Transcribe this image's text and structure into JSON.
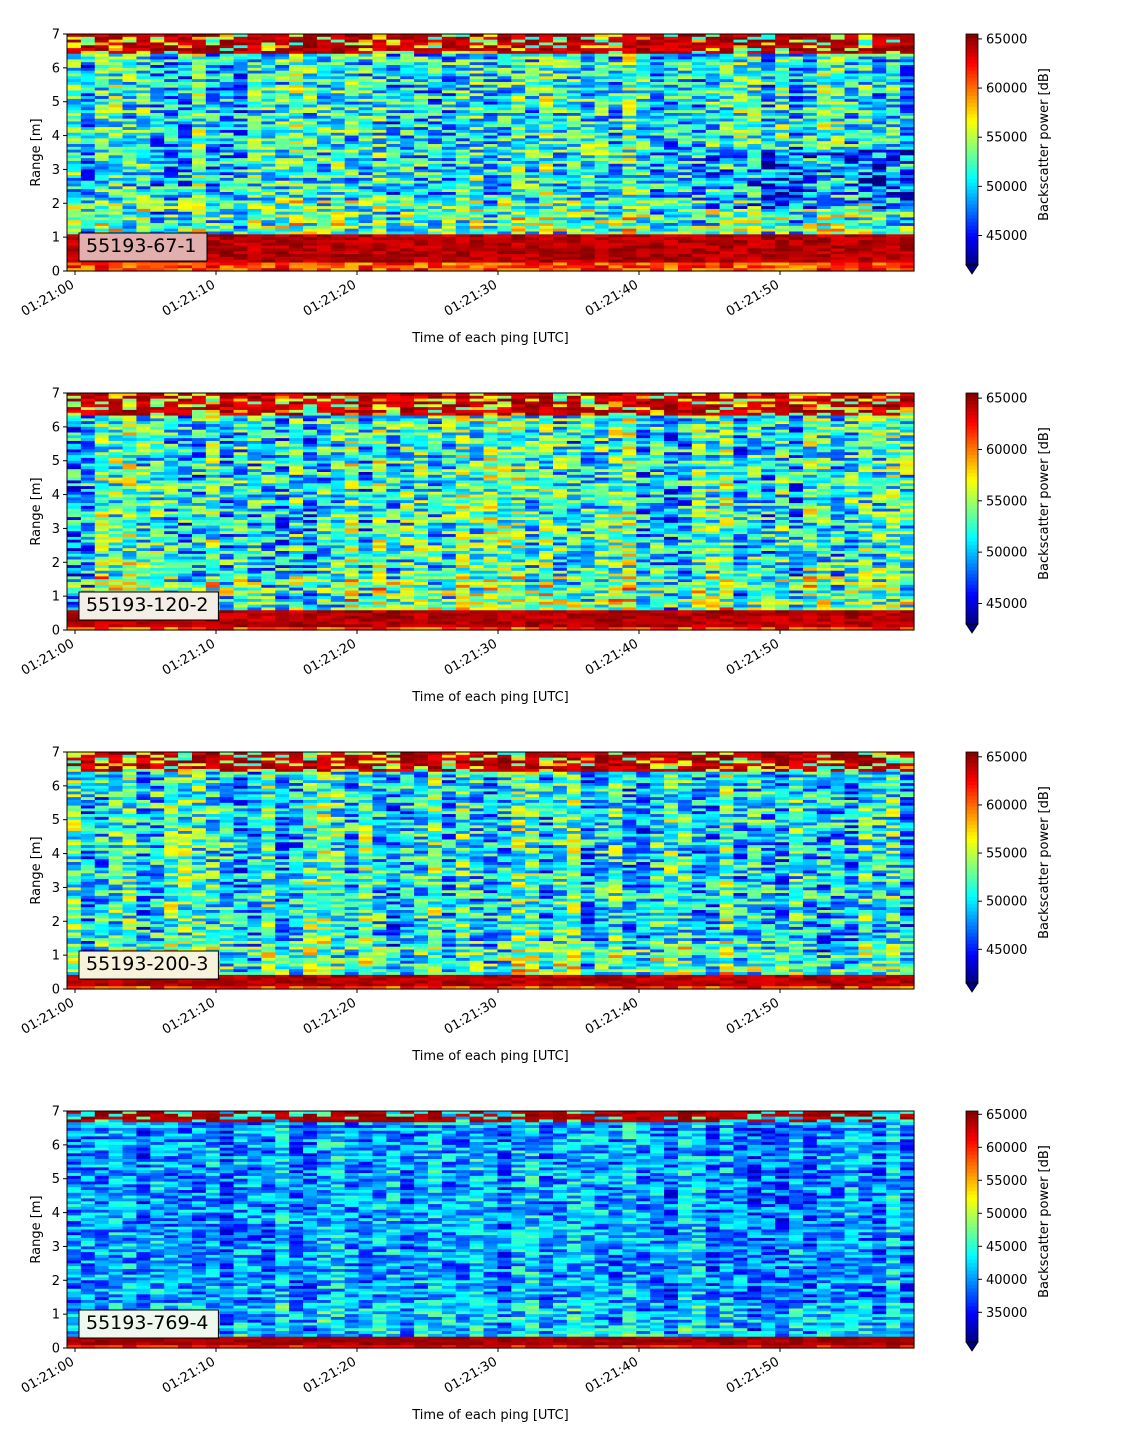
{
  "chart_data": [
    {
      "type": "heatmap",
      "station_label": "55193-67-1",
      "station_label_bg": "#e2aeae",
      "xlabel": "Time of each ping [UTC]",
      "ylabel": "Range [m]",
      "x_tick_labels": [
        "01:21:00",
        "01:21:10",
        "01:21:20",
        "01:21:30",
        "01:21:40",
        "01:21:50"
      ],
      "x_range_seconds": [
        0,
        60
      ],
      "ylim": [
        0,
        7
      ],
      "y_ticks": [
        0,
        1,
        2,
        3,
        4,
        5,
        6,
        7
      ],
      "colorbar_label": "Backscatter power [dB]",
      "colorbar_ticks": [
        45000,
        50000,
        55000,
        60000,
        65000
      ],
      "color_range": [
        42000,
        65500
      ],
      "colormap": "jet",
      "pattern": {
        "strong_bottom_band_m": [
          0.25,
          1.1
        ],
        "strong_top_band_m": [
          6.4,
          7.0
        ],
        "mid_water_typical_level": 51000,
        "late_time_weak_region": "2–3.5 m after 01:21:45"
      }
    },
    {
      "type": "heatmap",
      "station_label": "55193-120-2",
      "station_label_bg": "#f4efe6",
      "xlabel": "Time of each ping [UTC]",
      "ylabel": "Range [m]",
      "x_tick_labels": [
        "01:21:00",
        "01:21:10",
        "01:21:20",
        "01:21:30",
        "01:21:40",
        "01:21:50"
      ],
      "x_range_seconds": [
        0,
        60
      ],
      "ylim": [
        0,
        7
      ],
      "y_ticks": [
        0,
        1,
        2,
        3,
        4,
        5,
        6,
        7
      ],
      "colorbar_label": "Backscatter power [dB]",
      "colorbar_ticks": [
        45000,
        50000,
        55000,
        60000,
        65000
      ],
      "color_range": [
        43000,
        65500
      ],
      "colormap": "jet",
      "pattern": {
        "strong_bottom_band_m": [
          0.1,
          0.6
        ],
        "strong_top_band_m": [
          6.3,
          7.0
        ],
        "mid_water_typical_level": 52000
      }
    },
    {
      "type": "heatmap",
      "station_label": "55193-200-3",
      "station_label_bg": "#f6f2dc",
      "xlabel": "Time of each ping [UTC]",
      "ylabel": "Range [m]",
      "x_tick_labels": [
        "01:21:00",
        "01:21:10",
        "01:21:20",
        "01:21:30",
        "01:21:40",
        "01:21:50"
      ],
      "x_range_seconds": [
        0,
        60
      ],
      "ylim": [
        0,
        7
      ],
      "y_ticks": [
        0,
        1,
        2,
        3,
        4,
        5,
        6,
        7
      ],
      "colorbar_label": "Backscatter power [dB]",
      "colorbar_ticks": [
        45000,
        50000,
        55000,
        60000,
        65000
      ],
      "color_range": [
        41500,
        65500
      ],
      "colormap": "jet",
      "pattern": {
        "strong_bottom_band_m": [
          0.1,
          0.45
        ],
        "strong_top_band_m": [
          6.4,
          7.0
        ],
        "mid_water_typical_level": 50500
      }
    },
    {
      "type": "heatmap",
      "station_label": "55193-769-4",
      "station_label_bg": "#eef8ee",
      "xlabel": "Time of each ping [UTC]",
      "ylabel": "Range [m]",
      "x_tick_labels": [
        "01:21:00",
        "01:21:10",
        "01:21:20",
        "01:21:30",
        "01:21:40",
        "01:21:50"
      ],
      "x_range_seconds": [
        0,
        60
      ],
      "ylim": [
        0,
        7
      ],
      "y_ticks": [
        0,
        1,
        2,
        3,
        4,
        5,
        6,
        7
      ],
      "colorbar_label": "Backscatter power [dB]",
      "colorbar_ticks": [
        35000,
        40000,
        45000,
        50000,
        55000,
        60000,
        65000
      ],
      "color_range": [
        30500,
        65500
      ],
      "colormap": "jet",
      "pattern": {
        "strong_bottom_band_m": [
          0.1,
          0.3
        ],
        "strong_top_band_m": [
          6.7,
          7.0
        ],
        "mid_water_typical_level": 40000
      }
    }
  ]
}
